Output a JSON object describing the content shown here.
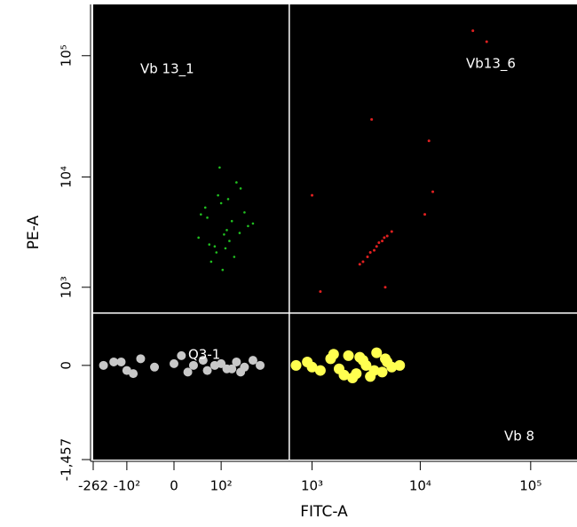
{
  "chart_data": {
    "type": "scatter",
    "scale": "logicle",
    "xlabel": "FITC-A",
    "ylabel": "PE-A",
    "xlim": [
      -262,
      262144
    ],
    "ylim": [
      -1457,
      262144
    ],
    "xticks": [
      {
        "value": -262,
        "label": "-262"
      },
      {
        "value": -100,
        "label": "-10²"
      },
      0,
      {
        "value": 100,
        "label": "10²"
      },
      {
        "value": 1000,
        "label": "10³"
      },
      {
        "value": 10000,
        "label": "10⁴"
      },
      {
        "value": 100000,
        "label": "10⁵"
      }
    ],
    "yticks": [
      {
        "value": -1457,
        "label": "-1,457"
      },
      0,
      {
        "value": 1000,
        "label": "10³"
      },
      {
        "value": 10000,
        "label": "10⁴"
      },
      {
        "value": 100000,
        "label": "10⁵"
      }
    ],
    "gates": {
      "x": 600,
      "y": 500,
      "color": "#ffffff"
    },
    "quadrant_labels": [
      "Vb 13_1",
      "Vb13_6",
      "Vb 8",
      "Q3-1"
    ],
    "background": "#000000",
    "series": [
      {
        "color": "#c8c8c8",
        "size": 5,
        "x": [
          -200,
          -150,
          -100,
          -60,
          -30,
          0,
          20,
          50,
          80,
          120,
          160,
          200,
          250,
          300,
          -80,
          10,
          60,
          100,
          140,
          -120,
          30,
          180
        ],
        "values": [
          0,
          20,
          -30,
          40,
          -10,
          10,
          -40,
          30,
          0,
          -20,
          20,
          -10,
          30,
          0,
          -50,
          60,
          -30,
          10,
          -20,
          20,
          0,
          -40
        ]
      },
      {
        "color": "#ffff50",
        "size": 6,
        "x": [
          700,
          900,
          1200,
          1500,
          1800,
          2200,
          2600,
          3000,
          3500,
          4000,
          4500,
          5000,
          5500,
          6500,
          1000,
          2000,
          2800,
          3800,
          4800,
          3200,
          2400,
          1600
        ],
        "values": [
          0,
          20,
          -30,
          40,
          -20,
          60,
          -50,
          30,
          -70,
          80,
          -40,
          20,
          -10,
          0,
          -10,
          -60,
          50,
          -30,
          40,
          0,
          -80,
          70
        ]
      },
      {
        "color": "#20c020",
        "size": 1.3,
        "x": [
          40,
          60,
          80,
          100,
          120,
          150,
          180,
          200,
          250,
          70,
          90,
          110,
          130,
          160,
          55,
          85,
          140,
          220,
          95,
          65,
          105,
          125,
          175,
          45,
          115
        ],
        "values": [
          3000,
          4500,
          2500,
          6000,
          3500,
          2000,
          8000,
          5000,
          4000,
          1800,
          7000,
          3200,
          2800,
          9000,
          5500,
          2200,
          4200,
          3800,
          12000,
          2600,
          1500,
          6500,
          3300,
          4800,
          2400
        ]
      },
      {
        "color": "#e02020",
        "size": 1.5,
        "x": [
          3000,
          3500,
          4000,
          4500,
          5000,
          3800,
          4200,
          2800,
          3300,
          4700,
          5500,
          1000,
          1200,
          4800,
          12000,
          13000,
          11000,
          30000,
          40000,
          3600
        ],
        "values": [
          1800,
          2200,
          2500,
          2800,
          3100,
          2300,
          2700,
          1700,
          2000,
          3000,
          3400,
          7000,
          900,
          1000,
          20000,
          7500,
          4800,
          160000,
          130000,
          30000
        ]
      }
    ]
  }
}
